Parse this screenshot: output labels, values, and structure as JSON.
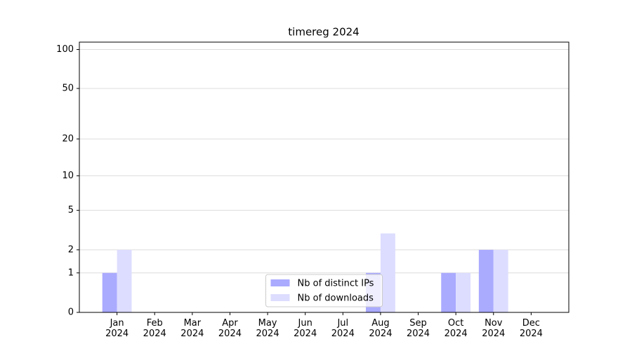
{
  "chart_data": {
    "type": "bar",
    "title": "timereg 2024",
    "categories": [
      "Jan\n2024",
      "Feb\n2024",
      "Mar\n2024",
      "Apr\n2024",
      "May\n2024",
      "Jun\n2024",
      "Jul\n2024",
      "Aug\n2024",
      "Sep\n2024",
      "Oct\n2024",
      "Nov\n2024",
      "Dec\n2024"
    ],
    "series": [
      {
        "name": "Nb of distinct IPs",
        "color": "#aaaaff",
        "values": [
          1,
          0,
          0,
          0,
          0,
          0,
          0,
          1,
          0,
          1,
          2,
          0
        ]
      },
      {
        "name": "Nb of downloads",
        "color": "#ddddff",
        "values": [
          2,
          0,
          0,
          0,
          0,
          0,
          0,
          3,
          0,
          1,
          2,
          0
        ]
      }
    ],
    "yscale": "log1p",
    "ylim": [
      0,
      114
    ],
    "yticks": [
      0,
      1,
      2,
      5,
      10,
      20,
      50,
      100
    ],
    "grid": true,
    "legend": "lower center"
  }
}
